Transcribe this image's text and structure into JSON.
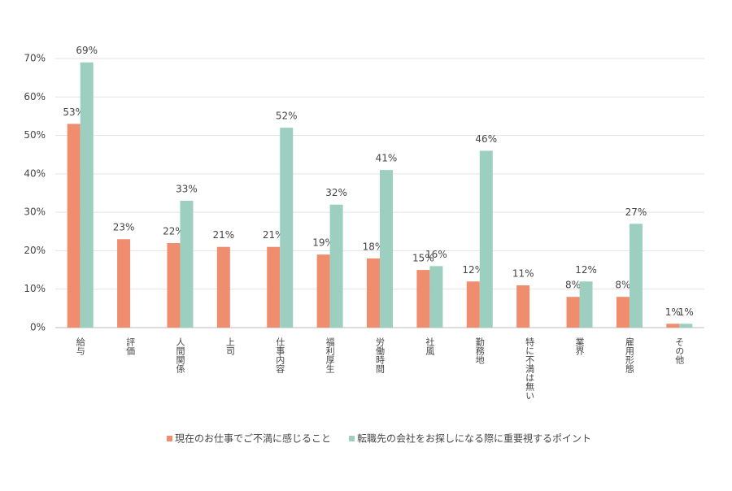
{
  "chart_data": {
    "type": "bar",
    "categories": [
      "給与",
      "評価",
      "人間関係",
      "上司",
      "仕事内容",
      "福利厚生",
      "労働時間",
      "社風",
      "勤務地",
      "特に不満は無い",
      "業界",
      "雇用形態",
      "その他"
    ],
    "series": [
      {
        "name": "現在のお仕事でご不満に感じること",
        "color": "#ef8d6e",
        "values": [
          53,
          23,
          22,
          21,
          21,
          19,
          18,
          15,
          12,
          11,
          8,
          8,
          1
        ],
        "value_labels": [
          "53%",
          "23%",
          "22%",
          "21%",
          "21%",
          "19%",
          "18%",
          "15%",
          "12%",
          "11%",
          "8%",
          "8%",
          "1%"
        ]
      },
      {
        "name": "転職先の会社をお探しになる際に重要視するポイント",
        "color": "#9ccfbf",
        "values": [
          69,
          null,
          33,
          null,
          52,
          32,
          41,
          16,
          46,
          null,
          12,
          27,
          1
        ],
        "value_labels": [
          "69%",
          null,
          "33%",
          null,
          "52%",
          "32%",
          "41%",
          "16%",
          "46%",
          null,
          "12%",
          "27%",
          "1%"
        ]
      }
    ],
    "ylim": [
      0,
      70
    ],
    "yticks": [
      {
        "value": 0,
        "label": "0%"
      },
      {
        "value": 10,
        "label": "10%"
      },
      {
        "value": 20,
        "label": "20%"
      },
      {
        "value": 30,
        "label": "30%"
      },
      {
        "value": 40,
        "label": "40%"
      },
      {
        "value": 50,
        "label": "50%"
      },
      {
        "value": 60,
        "label": "60%"
      },
      {
        "value": 70,
        "label": "70%"
      }
    ],
    "grid": true
  }
}
